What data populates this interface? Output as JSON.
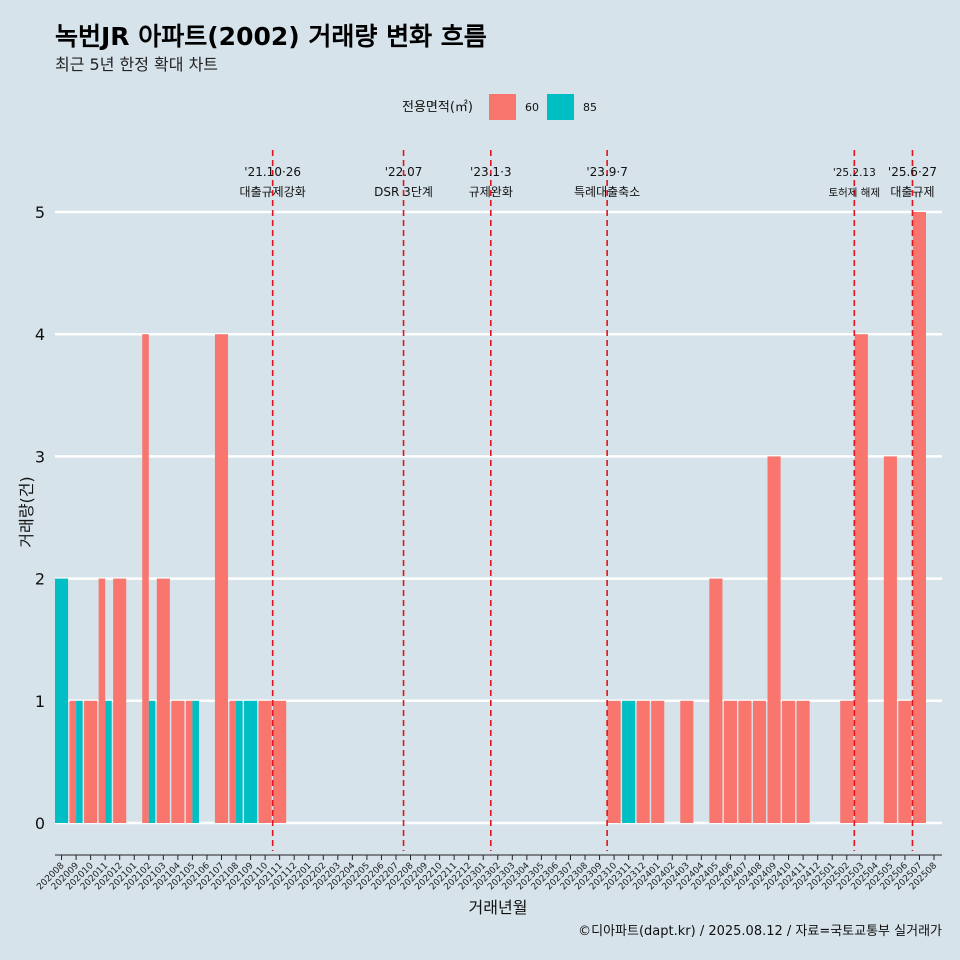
{
  "title": "녹번JR 아파트(2002) 거래량 변화 흐름",
  "subtitle": "최근 5년 한정 확대 차트",
  "caption": "©디아파트(dapt.kr) / 2025.08.12 / 자료=국토교통부 실거래가",
  "legend": {
    "title": "전용면적(㎡)",
    "items": [
      {
        "label": "60",
        "color": "#f8766d"
      },
      {
        "label": "85",
        "color": "#00bfc4"
      }
    ]
  },
  "chart_data": {
    "type": "bar",
    "xlabel": "거래년월",
    "ylabel": "거래량(건)",
    "ylim": [
      0,
      5
    ],
    "yticks": [
      0,
      1,
      2,
      3,
      4,
      5
    ],
    "categories": [
      "202008",
      "202009",
      "202010",
      "202011",
      "202012",
      "202101",
      "202102",
      "202103",
      "202104",
      "202105",
      "202106",
      "202107",
      "202108",
      "202109",
      "202110",
      "202111",
      "202112",
      "202201",
      "202202",
      "202203",
      "202204",
      "202205",
      "202206",
      "202207",
      "202208",
      "202209",
      "202210",
      "202211",
      "202212",
      "202301",
      "202302",
      "202303",
      "202304",
      "202305",
      "202306",
      "202307",
      "202308",
      "202309",
      "202310",
      "202311",
      "202312",
      "202401",
      "202402",
      "202403",
      "202404",
      "202405",
      "202406",
      "202407",
      "202408",
      "202409",
      "202410",
      "202411",
      "202412",
      "202501",
      "202502",
      "202503",
      "202504",
      "202505",
      "202506",
      "202507",
      "202508"
    ],
    "series": [
      {
        "name": "60",
        "color": "#f8766d",
        "values": [
          0,
          1,
          1,
          2,
          2,
          0,
          4,
          2,
          1,
          1,
          0,
          4,
          1,
          0,
          1,
          1,
          0,
          0,
          0,
          0,
          0,
          0,
          0,
          0,
          0,
          0,
          0,
          0,
          0,
          0,
          0,
          0,
          0,
          0,
          0,
          0,
          0,
          0,
          1,
          0,
          1,
          1,
          0,
          1,
          0,
          2,
          1,
          1,
          1,
          3,
          1,
          1,
          0,
          0,
          1,
          4,
          0,
          3,
          1,
          5,
          0
        ]
      },
      {
        "name": "85",
        "color": "#00bfc4",
        "values": [
          2,
          1,
          0,
          1,
          0,
          0,
          1,
          0,
          0,
          1,
          0,
          0,
          1,
          1,
          0,
          0,
          0,
          0,
          0,
          0,
          0,
          0,
          0,
          0,
          0,
          0,
          0,
          0,
          0,
          0,
          0,
          0,
          0,
          0,
          0,
          0,
          0,
          0,
          0,
          1,
          0,
          0,
          0,
          0,
          0,
          0,
          0,
          0,
          0,
          0,
          0,
          0,
          0,
          0,
          0,
          0,
          0,
          0,
          0,
          0,
          0
        ]
      }
    ],
    "events": [
      {
        "date": "'21.10·26",
        "label": "대출규제강화",
        "after": "202110"
      },
      {
        "date": "'22.07",
        "label": "DSR 3단계",
        "after": "202207"
      },
      {
        "date": "'23.1·3",
        "label": "규제완화",
        "after": "202301"
      },
      {
        "date": "'23.9·7",
        "label": "특례대출축소",
        "after": "202309"
      },
      {
        "date": "'25.2.13",
        "label": "토허제 해제",
        "after": "202502"
      },
      {
        "date": "'25.6·27",
        "label": "대출규제",
        "after": "202506"
      }
    ]
  }
}
